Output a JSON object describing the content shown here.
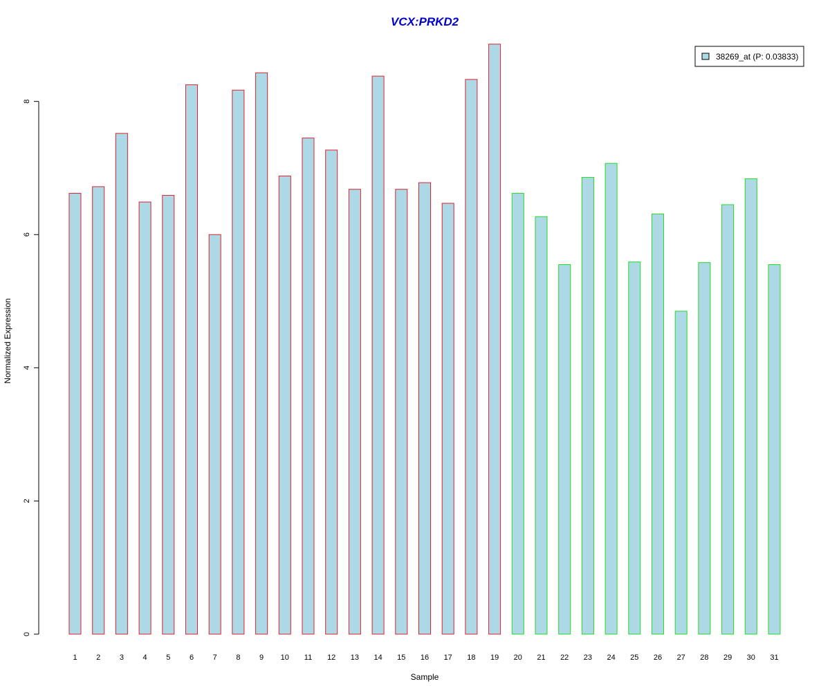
{
  "chart_data": {
    "type": "bar",
    "title": "VCX:PRKD2",
    "xlabel": "Sample",
    "ylabel": "Normalized Expression",
    "categories": [
      "1",
      "2",
      "3",
      "4",
      "5",
      "6",
      "7",
      "8",
      "9",
      "10",
      "11",
      "12",
      "13",
      "14",
      "15",
      "16",
      "17",
      "18",
      "19",
      "20",
      "21",
      "22",
      "23",
      "24",
      "25",
      "26",
      "27",
      "28",
      "29",
      "30",
      "31"
    ],
    "values": [
      6.62,
      6.72,
      7.52,
      6.49,
      6.59,
      8.25,
      6.0,
      8.17,
      8.43,
      6.88,
      7.45,
      7.27,
      6.68,
      8.38,
      6.68,
      6.78,
      6.47,
      8.33,
      8.86,
      6.62,
      6.27,
      5.55,
      6.86,
      7.07,
      5.59,
      6.31,
      4.85,
      5.58,
      6.45,
      6.84,
      5.55
    ],
    "groups": [
      {
        "border_color": "#e0202a",
        "samples": [
          1,
          19
        ]
      },
      {
        "border_color": "#22dd22",
        "samples": [
          20,
          31
        ]
      }
    ],
    "ylim": [
      0,
      8.9
    ],
    "yticks": [
      0,
      2,
      4,
      6,
      8
    ],
    "grid": false,
    "legend": {
      "position": "top-right",
      "entries": [
        {
          "label": "38269_at (P: 0.03833)",
          "color": "#add8e6"
        }
      ]
    },
    "colors": {
      "bar_fill": "#add8e6",
      "title": "#0000cc"
    }
  }
}
